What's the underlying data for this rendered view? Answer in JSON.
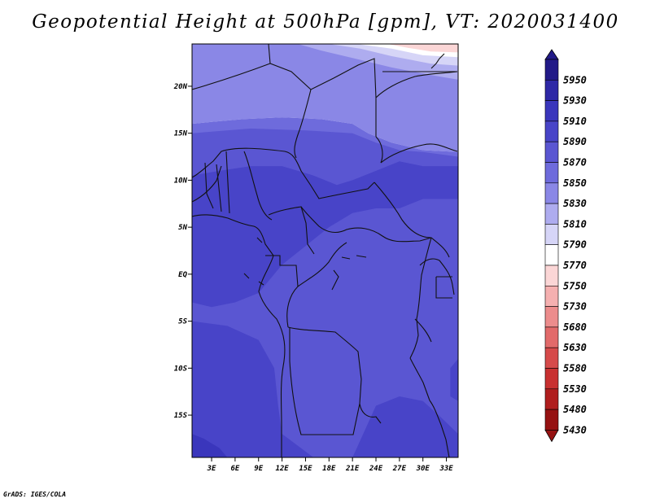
{
  "chart_data": {
    "type": "heatmap",
    "title": "Geopotential Height at 500hPa [gpm], VT: 2020031400",
    "x_tick_labels": [
      "3E",
      "6E",
      "9E",
      "12E",
      "15E",
      "18E",
      "21E",
      "24E",
      "27E",
      "30E",
      "33E"
    ],
    "x_ticks": [
      3,
      6,
      9,
      12,
      15,
      18,
      21,
      24,
      27,
      30,
      33
    ],
    "y_tick_labels": [
      "20N",
      "15N",
      "10N",
      "5N",
      "EQ",
      "5S",
      "10S",
      "15S"
    ],
    "y_ticks": [
      20,
      15,
      10,
      5,
      0,
      -5,
      -10,
      -15
    ],
    "xlim": [
      0.5,
      34.5
    ],
    "ylim": [
      -19.5,
      24.5
    ],
    "color_levels": [
      5950,
      5930,
      5910,
      5890,
      5870,
      5850,
      5830,
      5810,
      5790,
      5770,
      5750,
      5730,
      5680,
      5630,
      5580,
      5530,
      5480,
      5430
    ],
    "colors": [
      "#221a88",
      "#2e28a6",
      "#3a36bc",
      "#4844c8",
      "#5a56d2",
      "#6e6bdc",
      "#8a87e6",
      "#aeacef",
      "#d6d5f7",
      "#ffffff",
      "#fbd6d6",
      "#f5b0b0",
      "#ec8c8c",
      "#e26a6a",
      "#d64a4a",
      "#c83030",
      "#b01e1e",
      "#961212"
    ],
    "shaded_regions": [
      {
        "level": 5830,
        "polygon": [
          [
            0.5,
            24.5
          ],
          [
            34.5,
            24.5
          ],
          [
            34.5,
            13
          ],
          [
            30,
            13.2
          ],
          [
            26,
            14
          ],
          [
            23,
            15
          ],
          [
            21,
            16
          ],
          [
            17,
            16.5
          ],
          [
            12,
            16.7
          ],
          [
            7,
            16.5
          ],
          [
            3,
            16.2
          ],
          [
            0.5,
            16
          ]
        ]
      },
      {
        "level": 5850,
        "polygon": [
          [
            0.5,
            16
          ],
          [
            3,
            16.2
          ],
          [
            7,
            16.5
          ],
          [
            12,
            16.7
          ],
          [
            17,
            16.5
          ],
          [
            21,
            16
          ],
          [
            23,
            15
          ],
          [
            26,
            14
          ],
          [
            30,
            13.2
          ],
          [
            34.5,
            13
          ],
          [
            34.5,
            -19.5
          ],
          [
            0.5,
            -19.5
          ]
        ]
      },
      {
        "level": 5870,
        "polygon": [
          [
            0.5,
            15
          ],
          [
            8,
            15.5
          ],
          [
            15,
            15.3
          ],
          [
            21,
            15
          ],
          [
            24,
            14
          ],
          [
            27,
            13.2
          ],
          [
            30,
            13
          ],
          [
            34.5,
            12.5
          ],
          [
            34.5,
            -19.5
          ],
          [
            0.5,
            -19.5
          ]
        ]
      },
      {
        "level": 5890,
        "polygon": [
          [
            0.5,
            10.5
          ],
          [
            4,
            11
          ],
          [
            8,
            11.5
          ],
          [
            12,
            11.5
          ],
          [
            16,
            10.5
          ],
          [
            19,
            9.5
          ],
          [
            21,
            10
          ],
          [
            24,
            11
          ],
          [
            27,
            12
          ],
          [
            30,
            11.5
          ],
          [
            34.5,
            11.5
          ],
          [
            34.5,
            8
          ],
          [
            30,
            8
          ],
          [
            27,
            7
          ],
          [
            24,
            7
          ],
          [
            21,
            6.5
          ],
          [
            18,
            5
          ],
          [
            15,
            3
          ],
          [
            12,
            1
          ],
          [
            9,
            -2
          ],
          [
            6,
            -3
          ],
          [
            3,
            -3.5
          ],
          [
            0.5,
            -3
          ]
        ]
      },
      {
        "level": 5890,
        "polygon": [
          [
            0.5,
            -5
          ],
          [
            5,
            -5.5
          ],
          [
            9,
            -7
          ],
          [
            11,
            -10
          ],
          [
            11.5,
            -14
          ],
          [
            12,
            -17
          ],
          [
            16,
            -19.5
          ],
          [
            0.5,
            -19.5
          ]
        ]
      },
      {
        "level": 5890,
        "polygon": [
          [
            21,
            -19.5
          ],
          [
            24,
            -14
          ],
          [
            27,
            -13
          ],
          [
            30,
            -13.5
          ],
          [
            32,
            -15
          ],
          [
            34.5,
            -17
          ],
          [
            34.5,
            -19.5
          ]
        ]
      },
      {
        "level": 5890,
        "polygon": [
          [
            33.5,
            -10
          ],
          [
            34.5,
            -9
          ],
          [
            34.5,
            -13.5
          ],
          [
            33.5,
            -13
          ]
        ]
      },
      {
        "level": 5910,
        "polygon": [
          [
            0.5,
            -17
          ],
          [
            2,
            -17.5
          ],
          [
            4,
            -18.5
          ],
          [
            5,
            -19.5
          ],
          [
            0.5,
            -19.5
          ]
        ]
      },
      {
        "level": 5810,
        "polygon": [
          [
            14,
            24.5
          ],
          [
            34.5,
            24.5
          ],
          [
            34.5,
            20.7
          ],
          [
            31,
            21.2
          ],
          [
            26,
            22
          ],
          [
            21,
            23
          ],
          [
            17,
            23.8
          ]
        ]
      },
      {
        "level": 5790,
        "polygon": [
          [
            18,
            24.5
          ],
          [
            34.5,
            24.5
          ],
          [
            34.5,
            22.2
          ],
          [
            31,
            22.4
          ],
          [
            26,
            23.2
          ],
          [
            22,
            24
          ]
        ]
      },
      {
        "level": 5770,
        "polygon": [
          [
            21.5,
            24.5
          ],
          [
            34.5,
            24.5
          ],
          [
            34.5,
            23.1
          ],
          [
            30,
            23.3
          ],
          [
            26,
            24
          ]
        ]
      },
      {
        "level": 5750,
        "polygon": [
          [
            25.5,
            24.5
          ],
          [
            34.5,
            24.5
          ],
          [
            34.5,
            23.6
          ],
          [
            31,
            23.7
          ],
          [
            28,
            24.1
          ]
        ]
      }
    ],
    "grid": false,
    "legend_position": "right"
  },
  "credit": "GrADS: IGES/COLA"
}
